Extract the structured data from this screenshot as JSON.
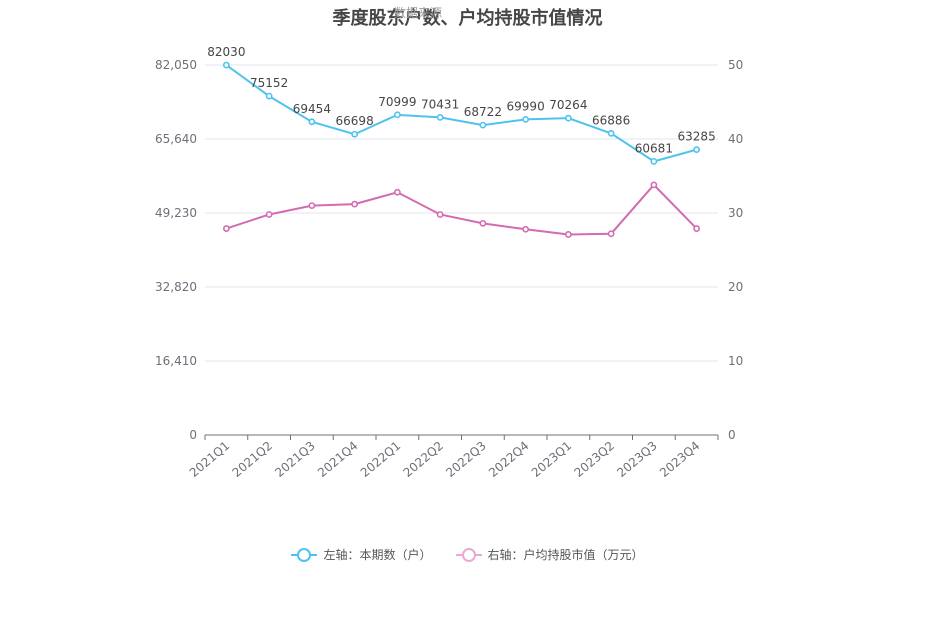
{
  "chart_data": {
    "type": "line",
    "title": "季度股东户数、户均持股市值情况",
    "watermark": "数据来源",
    "categories": [
      "2021Q1",
      "2021Q2",
      "2021Q3",
      "2021Q4",
      "2022Q1",
      "2022Q2",
      "2022Q3",
      "2022Q4",
      "2023Q1",
      "2023Q2",
      "2023Q3",
      "2023Q4"
    ],
    "left_axis": {
      "min": 0,
      "max": 82050,
      "ticks": [
        "0",
        "16,410",
        "32,820",
        "49,230",
        "65,640",
        "82,050"
      ]
    },
    "right_axis": {
      "min": 0,
      "max": 50,
      "ticks": [
        "0",
        "10",
        "20",
        "30",
        "40",
        "50"
      ]
    },
    "series": [
      {
        "name": "左轴：本期数（户）",
        "axis": "left",
        "color": "#4fc3ef",
        "values": [
          82030,
          75152,
          69454,
          66698,
          70999,
          70431,
          68722,
          69990,
          70264,
          66886,
          60681,
          63285
        ],
        "labels": [
          "82030",
          "75152",
          "69454",
          "66698",
          "70999",
          "70431",
          "68722",
          "69990",
          "70264",
          "66886",
          "60681",
          "63285"
        ]
      },
      {
        "name": "右轴：户均持股市值（万元）",
        "axis": "right",
        "color": "#d46bb0",
        "values": [
          27.9,
          29.8,
          31.0,
          31.2,
          32.8,
          29.8,
          28.6,
          27.8,
          27.1,
          27.2,
          33.8,
          27.9
        ]
      }
    ],
    "grid": true,
    "legend": "bottom-center"
  }
}
